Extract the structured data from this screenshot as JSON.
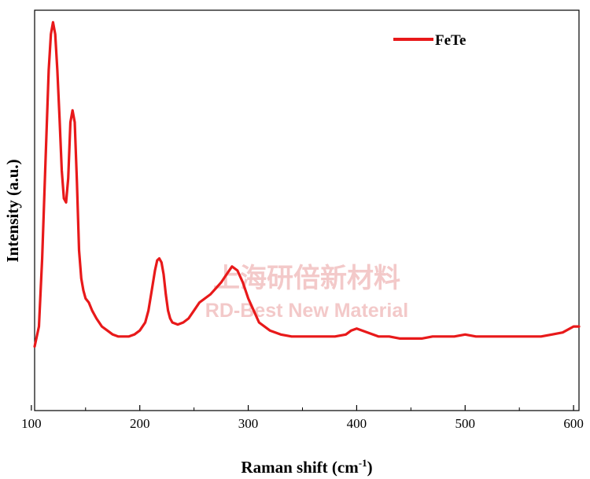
{
  "chart_data": {
    "type": "line",
    "title": "",
    "xlabel": "Raman shift (cm",
    "xlabel_superscript": "-1",
    "xlabel_suffix": ")",
    "ylabel": "Intensity (a.u.)",
    "xlim": [
      103,
      605
    ],
    "ylim": [
      0,
      100
    ],
    "x_ticks": [
      100,
      200,
      300,
      400,
      500,
      600
    ],
    "y_ticks": [],
    "grid": false,
    "legend_position": "top-right",
    "series": [
      {
        "name": "FeTe",
        "color": "#e8191a",
        "x": [
          103,
          107,
          110,
          113,
          116,
          118,
          120,
          122,
          124,
          126,
          128,
          130,
          132,
          134,
          136,
          138,
          140,
          142,
          144,
          146,
          148,
          150,
          153,
          156,
          160,
          165,
          170,
          175,
          180,
          185,
          190,
          195,
          200,
          205,
          208,
          211,
          214,
          216,
          218,
          220,
          222,
          224,
          226,
          228,
          230,
          235,
          240,
          245,
          250,
          255,
          260,
          265,
          270,
          275,
          280,
          285,
          290,
          295,
          300,
          305,
          310,
          320,
          330,
          340,
          350,
          360,
          370,
          380,
          390,
          395,
          400,
          405,
          410,
          415,
          420,
          430,
          440,
          450,
          460,
          470,
          480,
          490,
          500,
          510,
          520,
          530,
          540,
          550,
          560,
          570,
          580,
          590,
          600,
          605
        ],
        "y": [
          16,
          21,
          38,
          62,
          85,
          94,
          97,
          94,
          85,
          73,
          60,
          53,
          52,
          58,
          72,
          75,
          72,
          57,
          40,
          33,
          30,
          28,
          27,
          25,
          23,
          21,
          20,
          19,
          18.5,
          18.5,
          18.5,
          19,
          20,
          22,
          25,
          30,
          35,
          37.5,
          38,
          37,
          34,
          29,
          25,
          23,
          22,
          21.5,
          22,
          23,
          25,
          27,
          28,
          29,
          30.5,
          32,
          34,
          36,
          35,
          32,
          28,
          25,
          22,
          20,
          19,
          18.5,
          18.5,
          18.5,
          18.5,
          18.5,
          19,
          20,
          20.5,
          20,
          19.5,
          19,
          18.5,
          18.5,
          18,
          18,
          18,
          18.5,
          18.5,
          18.5,
          19,
          18.5,
          18.5,
          18.5,
          18.5,
          18.5,
          18.5,
          18.5,
          19,
          19.5,
          21,
          21
        ]
      }
    ]
  },
  "watermark": {
    "chinese": "上海研倍新材料",
    "english": "RD-Best New Material"
  }
}
